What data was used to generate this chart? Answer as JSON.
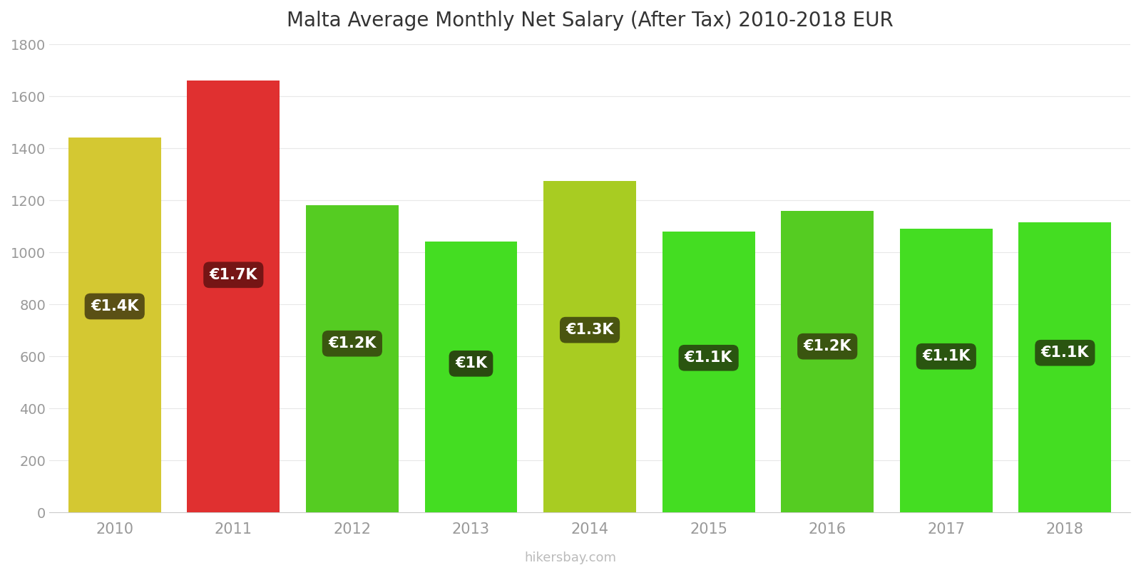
{
  "title": "Malta Average Monthly Net Salary (After Tax) 2010-2018 EUR",
  "years": [
    2010,
    2011,
    2012,
    2013,
    2014,
    2015,
    2016,
    2017,
    2018
  ],
  "values": [
    1440,
    1660,
    1180,
    1040,
    1275,
    1080,
    1160,
    1090,
    1115
  ],
  "bar_colors": [
    "#d4c832",
    "#e03030",
    "#55cc22",
    "#44dd22",
    "#a8cc22",
    "#44dd22",
    "#55cc22",
    "#44dd22",
    "#44dd22"
  ],
  "labels": [
    "€1.4K",
    "€1.7K",
    "€1.2K",
    "€1K",
    "€1.3K",
    "€1.1K",
    "€1.2K",
    "€1.1K",
    "€1.1K"
  ],
  "label_box_color": [
    "#5a5015",
    "#751515",
    "#3a5510",
    "#2a4a10",
    "#4a5510",
    "#2a5510",
    "#3a5510",
    "#2a5510",
    "#2a5510"
  ],
  "ylim": [
    0,
    1800
  ],
  "yticks": [
    0,
    200,
    400,
    600,
    800,
    1000,
    1200,
    1400,
    1600,
    1800
  ],
  "watermark": "hikersbay.com",
  "background_color": "#ffffff",
  "bar_width": 0.78,
  "label_fontsize": 15,
  "title_fontsize": 20,
  "tick_fontsize": 15
}
